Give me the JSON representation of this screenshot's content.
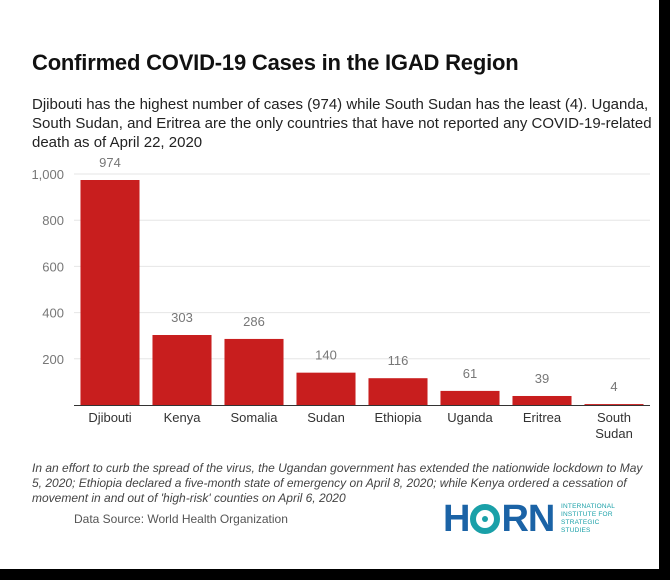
{
  "title": "Confirmed COVID-19 Cases in the IGAD Region",
  "subtitle": "Djibouti has the highest number of cases (974) while South Sudan has the least (4). Uganda, South Sudan, and Eritrea are the only countries that have not reported any COVID-19-related death as of April 22, 2020",
  "note": "In an effort to curb the spread of the virus, the Ugandan government has extended the nationwide lockdown to May 5, 2020; Ethiopia declared a five-month state of emergency on April 8, 2020; while Kenya ordered a cessation of movement in and out of 'high-risk' counties on April 6, 2020",
  "source": "Data Source: World Health Organization",
  "logo": {
    "word_start": "H",
    "word_end": "RN",
    "lines": [
      "INTERNATIONAL",
      "INSTITUTE FOR",
      "STRATEGIC",
      "STUDIES"
    ],
    "color_blue": "#1b63a6",
    "color_teal": "#1aa0a8"
  },
  "colors": {
    "bar": "#c81e1e",
    "value_label": "#777777",
    "axis_label": "#777777",
    "category_label": "#333333",
    "grid": "#e6e6e6"
  },
  "chart_data": {
    "type": "bar",
    "categories": [
      "Djibouti",
      "Kenya",
      "Somalia",
      "Sudan",
      "Ethiopia",
      "Uganda",
      "Eritrea",
      "South Sudan"
    ],
    "values": [
      974,
      303,
      286,
      140,
      116,
      61,
      39,
      4
    ],
    "ylim": [
      0,
      1000
    ],
    "yticks": [
      0,
      200,
      400,
      600,
      800,
      1000
    ],
    "ytick_labels": [
      "",
      "200",
      "400",
      "600",
      "800",
      "1,000"
    ],
    "grid": true,
    "data_labels": true
  }
}
